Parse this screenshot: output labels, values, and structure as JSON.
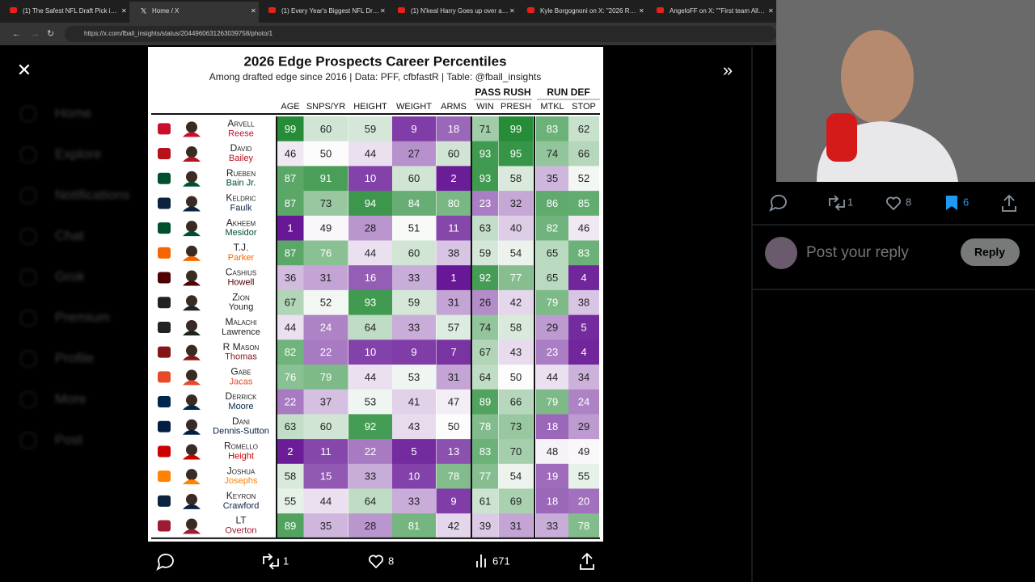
{
  "browser": {
    "tabs": [
      "(1) The Safest NFL Draft Pick i…",
      "Home / X",
      "(1) Every Year's Biggest NFL Dr…",
      "(1) N'keal Harry Goes up over a…",
      "Kyle Borgognoni on X: \"2026 R…",
      "AngeloFF on X: \"\"First team All…"
    ],
    "url": "https://x.com/fball_insights/status/2044960631263039758/photo/1"
  },
  "sidebar": [
    "Home",
    "Explore",
    "Notifications",
    "Chat",
    "Grok",
    "Premium",
    "Profile",
    "More",
    "Post"
  ],
  "table": {
    "title": "2026 Edge Prospects Career Percentiles",
    "subtitle": "Among drafted edge since 2016 | Data: PFF, cfbfastR | Table: @fball_insights",
    "group_headers": [
      "PASS RUSH",
      "RUN DEF"
    ],
    "columns": [
      "AGE",
      "SNPS/YR",
      "HEIGHT",
      "WEIGHT",
      "ARMS",
      "WIN",
      "PRESH",
      "MTKL",
      "STOP"
    ],
    "rows": [
      {
        "first": "Arvell",
        "last": "Reese",
        "color": "#c8102e",
        "values": [
          99,
          60,
          59,
          9,
          18,
          71,
          99,
          83,
          62
        ]
      },
      {
        "first": "David",
        "last": "Bailey",
        "color": "#b5121b",
        "values": [
          46,
          50,
          44,
          27,
          60,
          93,
          95,
          74,
          66
        ]
      },
      {
        "first": "Rueben",
        "last": "Bain Jr.",
        "color": "#005030",
        "values": [
          87,
          91,
          10,
          60,
          2,
          93,
          58,
          35,
          52
        ]
      },
      {
        "first": "Keldric",
        "last": "Faulk",
        "color": "#0c2340",
        "values": [
          87,
          73,
          94,
          84,
          80,
          23,
          32,
          86,
          85
        ]
      },
      {
        "first": "Akheem",
        "last": "Mesidor",
        "color": "#005030",
        "values": [
          1,
          49,
          28,
          51,
          11,
          63,
          40,
          82,
          46
        ]
      },
      {
        "first": "T.J.",
        "last": "Parker",
        "color": "#f56600",
        "values": [
          87,
          76,
          44,
          60,
          38,
          59,
          54,
          65,
          83
        ]
      },
      {
        "first": "Cashius",
        "last": "Howell",
        "color": "#500000",
        "values": [
          36,
          31,
          16,
          33,
          1,
          92,
          77,
          65,
          4
        ]
      },
      {
        "first": "Zion",
        "last": "Young",
        "color": "#222222",
        "values": [
          67,
          52,
          93,
          59,
          31,
          26,
          42,
          79,
          38
        ]
      },
      {
        "first": "Malachi",
        "last": "Lawrence",
        "color": "#222222",
        "values": [
          44,
          24,
          64,
          33,
          57,
          74,
          58,
          29,
          5
        ]
      },
      {
        "first": "R Mason",
        "last": "Thomas",
        "color": "#841617",
        "values": [
          82,
          22,
          10,
          9,
          7,
          67,
          43,
          23,
          4
        ]
      },
      {
        "first": "Gabe",
        "last": "Jacas",
        "color": "#e84a27",
        "values": [
          76,
          79,
          44,
          53,
          31,
          64,
          50,
          44,
          34
        ]
      },
      {
        "first": "Derrick",
        "last": "Moore",
        "color": "#00274c",
        "values": [
          22,
          37,
          53,
          41,
          47,
          89,
          66,
          79,
          24
        ]
      },
      {
        "first": "Dani",
        "last": "Dennis-Sutton",
        "color": "#041e42",
        "values": [
          63,
          60,
          92,
          43,
          50,
          78,
          73,
          18,
          29
        ]
      },
      {
        "first": "Romello",
        "last": "Height",
        "color": "#cc0000",
        "values": [
          2,
          11,
          22,
          5,
          13,
          83,
          70,
          48,
          49
        ]
      },
      {
        "first": "Joshua",
        "last": "Josephs",
        "color": "#ff8200",
        "values": [
          58,
          15,
          33,
          10,
          78,
          77,
          54,
          19,
          55
        ]
      },
      {
        "first": "Keyron",
        "last": "Crawford",
        "color": "#0c2340",
        "values": [
          55,
          44,
          64,
          33,
          9,
          61,
          69,
          18,
          20
        ]
      },
      {
        "first": "LT",
        "last": "Overton",
        "color": "#9e1b32",
        "values": [
          89,
          35,
          28,
          81,
          42,
          39,
          31,
          33,
          78
        ]
      }
    ]
  },
  "photo_actions": {
    "reposts": "1",
    "likes": "8",
    "views": "671"
  },
  "post_actions": {
    "reposts": "1",
    "likes": "8",
    "bookmarks": "6"
  },
  "reply": {
    "placeholder": "Post your reply",
    "button": "Reply"
  }
}
